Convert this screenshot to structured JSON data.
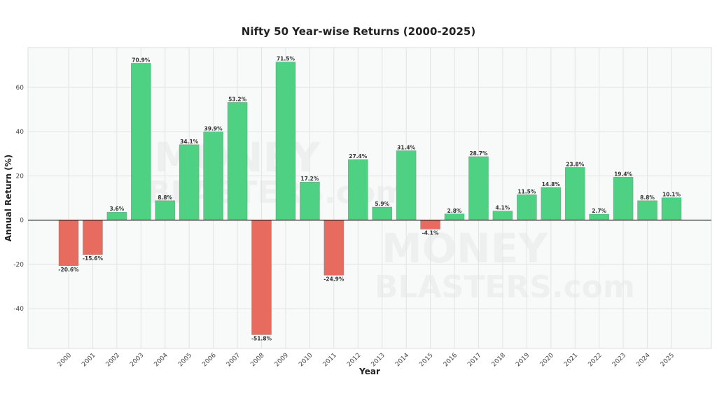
{
  "chart_data": {
    "type": "bar",
    "title": "Nifty 50 Year-wise Returns (2000-2025)",
    "xlabel": "Year",
    "ylabel": "Annual Return (%)",
    "categories": [
      "2000",
      "2001",
      "2002",
      "2003",
      "2004",
      "2005",
      "2006",
      "2007",
      "2008",
      "2009",
      "2010",
      "2011",
      "2012",
      "2013",
      "2014",
      "2015",
      "2016",
      "2017",
      "2018",
      "2019",
      "2020",
      "2021",
      "2022",
      "2023",
      "2024",
      "2025"
    ],
    "values": [
      -20.6,
      -15.6,
      3.6,
      70.9,
      8.8,
      34.1,
      39.9,
      53.2,
      -51.8,
      71.5,
      17.2,
      -24.9,
      27.4,
      5.9,
      31.4,
      -4.1,
      2.8,
      28.7,
      4.1,
      11.5,
      14.8,
      23.8,
      2.7,
      19.4,
      8.8,
      10.1
    ],
    "data_labels": [
      "-20.6%",
      "-15.6%",
      "3.6%",
      "70.9%",
      "8.8%",
      "34.1%",
      "39.9%",
      "53.2%",
      "-51.8%",
      "71.5%",
      "17.2%",
      "-24.9%",
      "27.4%",
      "5.9%",
      "31.4%",
      "-4.1%",
      "2.8%",
      "28.7%",
      "4.1%",
      "11.5%",
      "14.8%",
      "23.8%",
      "2.7%",
      "19.4%",
      "8.8%",
      "10.1%"
    ],
    "ylim": [
      -58,
      78
    ],
    "yticks": [
      -40,
      -20,
      0,
      20,
      40,
      60
    ],
    "grid": true,
    "colors": {
      "positive": "#4fd184",
      "negative": "#e86b5f",
      "plot_bg": "#f8f9f9"
    }
  },
  "watermark": {
    "line1": "MONEY",
    "line2": "BLASTERS.com"
  }
}
